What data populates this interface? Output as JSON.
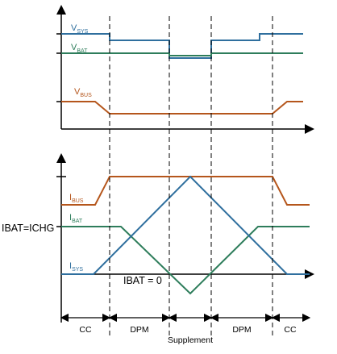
{
  "top_panel": {
    "labels": {
      "vsys": {
        "main": "V",
        "sub": "SYS"
      },
      "vbat": {
        "main": "V",
        "sub": "BAT"
      },
      "vbus": {
        "main": "V",
        "sub": "BUS"
      }
    }
  },
  "bottom_panel": {
    "labels": {
      "ibus": {
        "main": "I",
        "sub": "BUS"
      },
      "ibat": {
        "main": "I",
        "sub": "BAT"
      },
      "isys": {
        "main": "I",
        "sub": "SYS"
      }
    },
    "annotations": {
      "ichg": "IBAT=ICHG",
      "zero": "IBAT = 0"
    }
  },
  "phases": [
    "CC",
    "DPM",
    "Supplement",
    "DPM",
    "CC"
  ],
  "colors": {
    "sys": "#2f6f9e",
    "bat": "#2e7d5b",
    "bus": "#b5561c",
    "axis": "#000000",
    "guide": "#000000"
  }
}
